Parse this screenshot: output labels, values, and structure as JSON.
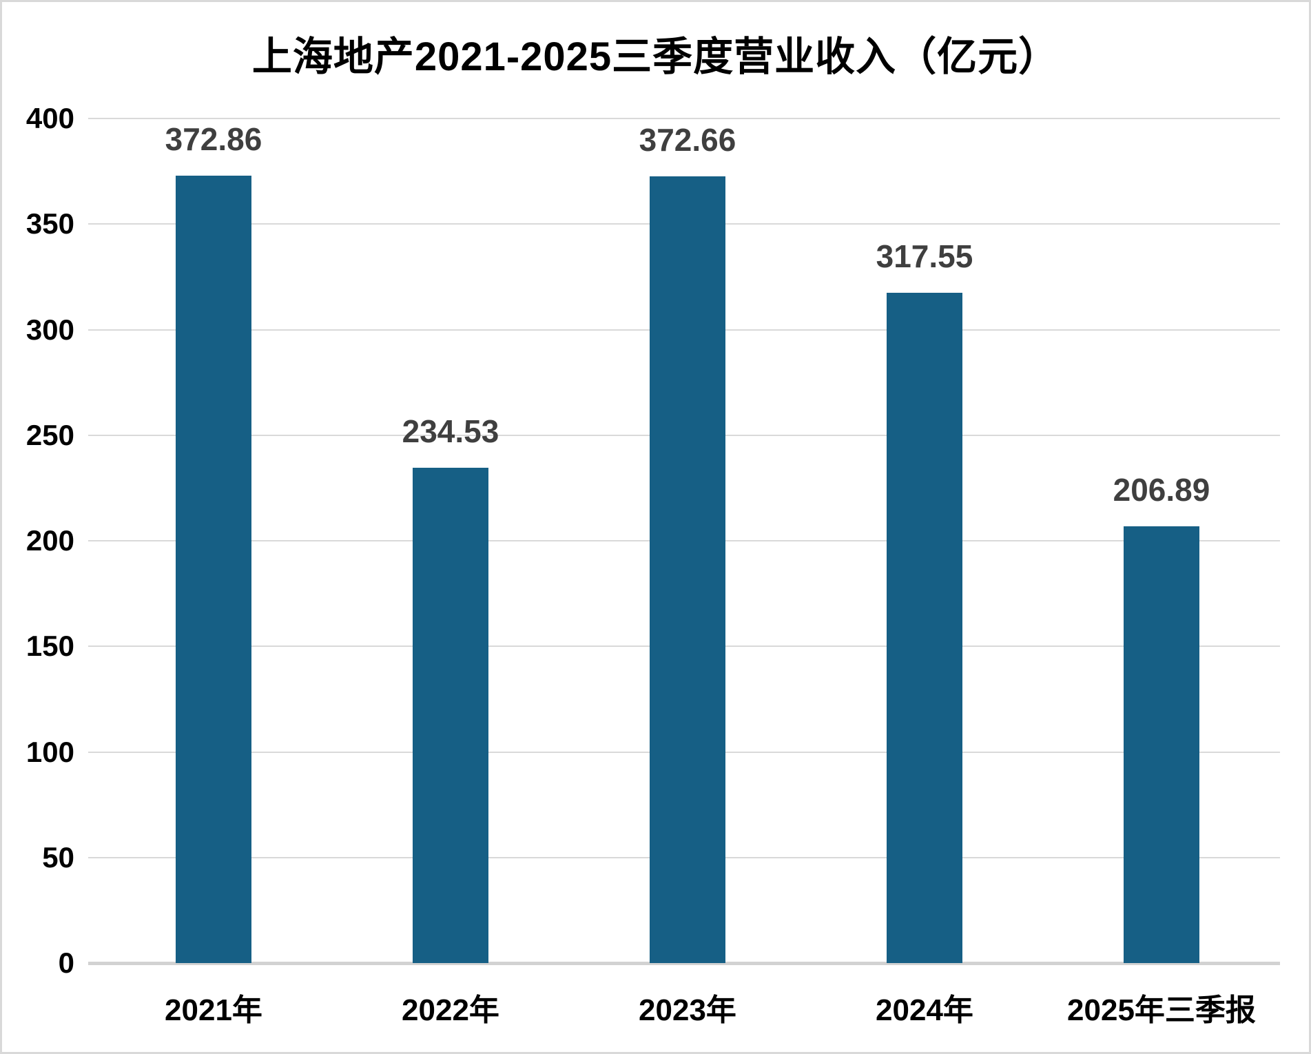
{
  "title": "上海地产2021-2025三季度营业收入（亿元）",
  "colors": {
    "bar_fill": "#165f85",
    "data_label": "#3f3f3f",
    "axis_label": "#000000",
    "gridline": "#d9d9d9",
    "baseline": "#d2d2d2",
    "background": "#ffffff",
    "canvas_border": "#d9d9d9"
  },
  "chart_data": {
    "type": "bar",
    "title": "上海地产2021-2025三季度营业收入（亿元）",
    "categories": [
      "2021年",
      "2022年",
      "2023年",
      "2024年",
      "2025年三季报"
    ],
    "values": [
      372.86,
      234.53,
      372.66,
      317.55,
      206.89
    ],
    "data_labels": [
      "372.86",
      "234.53",
      "372.66",
      "317.55",
      "206.89"
    ],
    "xlabel": "",
    "ylabel": "",
    "y_ticks": [
      0,
      50,
      100,
      150,
      200,
      250,
      300,
      350,
      400
    ],
    "ylim": [
      0,
      400
    ],
    "grid": true,
    "legend_position": "none",
    "bar_color": "#165f85"
  }
}
